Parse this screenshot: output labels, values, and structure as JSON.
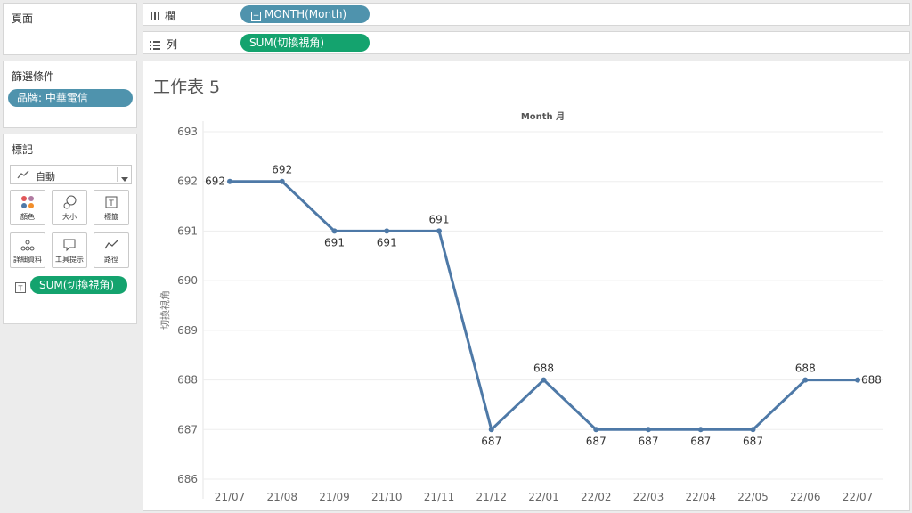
{
  "pages_panel": {
    "title": "頁面"
  },
  "columns_shelf": {
    "icon": "columns-icon",
    "label": "欄",
    "pill": "MONTH(Month)"
  },
  "rows_shelf": {
    "icon": "rows-icon",
    "label": "列",
    "pill": "SUM(切換視角)"
  },
  "filters_panel": {
    "title": "篩選條件",
    "filter": "品牌: 中華電信"
  },
  "marks_panel": {
    "title": "標記",
    "mark_type": "自動",
    "buttons": [
      {
        "label": "顏色",
        "icon": "color-icon"
      },
      {
        "label": "大小",
        "icon": "size-icon"
      },
      {
        "label": "標籤",
        "icon": "label-icon"
      },
      {
        "label": "詳細資料",
        "icon": "detail-icon"
      },
      {
        "label": "工具提示",
        "icon": "tooltip-icon"
      },
      {
        "label": "路徑",
        "icon": "path-icon"
      }
    ],
    "label_pill": "SUM(切換視角)"
  },
  "sheet": {
    "title": "工作表 5"
  },
  "colors": {
    "line": "#4e79a7",
    "pill_blue": "#4f93ad",
    "pill_green": "#14a36e"
  },
  "chart_data": {
    "type": "line",
    "title": "Month 月",
    "xlabel": "",
    "ylabel": "切換視角",
    "categories": [
      "21/07",
      "21/08",
      "21/09",
      "21/10",
      "21/11",
      "21/12",
      "22/01",
      "22/02",
      "22/03",
      "22/04",
      "22/05",
      "22/06",
      "22/07"
    ],
    "series": [
      {
        "values": [
          692,
          692,
          691,
          691,
          691,
          687,
          688,
          687,
          687,
          687,
          687,
          688,
          688
        ]
      }
    ],
    "data_labels": [
      "692",
      "692",
      "691",
      "691",
      "691",
      "687",
      "688",
      "687",
      "687",
      "687",
      "687",
      "688",
      "688"
    ],
    "y_ticks": [
      "686",
      "687",
      "688",
      "689",
      "690",
      "691",
      "692",
      "693"
    ],
    "ylim": [
      686,
      693
    ],
    "grid": true
  }
}
